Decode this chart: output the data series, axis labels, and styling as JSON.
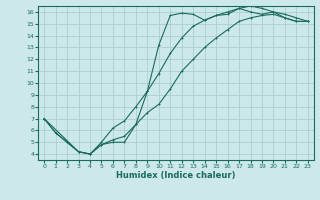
{
  "xlabel": "Humidex (Indice chaleur)",
  "bg_color": "#cce8e8",
  "line_color": "#1a6b5a",
  "grid_color": "#aad0d0",
  "xlim": [
    -0.5,
    23.5
  ],
  "ylim": [
    3.5,
    16.5
  ],
  "yticks": [
    4,
    5,
    6,
    7,
    8,
    9,
    10,
    11,
    12,
    13,
    14,
    15,
    16
  ],
  "xticks": [
    0,
    1,
    2,
    3,
    4,
    5,
    6,
    7,
    8,
    9,
    10,
    11,
    12,
    13,
    14,
    15,
    16,
    17,
    18,
    19,
    20,
    21,
    22,
    23
  ],
  "line1_x": [
    0,
    1,
    2,
    3,
    4,
    5,
    6,
    7,
    8,
    9,
    10,
    11,
    12,
    13,
    14,
    15,
    16,
    17,
    18,
    19,
    20,
    21,
    22,
    23
  ],
  "line1_y": [
    7.0,
    5.8,
    5.0,
    4.2,
    4.0,
    4.8,
    5.0,
    5.0,
    6.5,
    9.3,
    13.2,
    15.7,
    15.9,
    15.8,
    15.3,
    15.7,
    15.8,
    16.3,
    16.0,
    15.8,
    16.0,
    15.5,
    15.2,
    15.2
  ],
  "line2_x": [
    0,
    1,
    3,
    4,
    5,
    6,
    7,
    8,
    9,
    10,
    11,
    12,
    13,
    14,
    15,
    16,
    17,
    18,
    19,
    20,
    21,
    22,
    23
  ],
  "line2_y": [
    7.0,
    5.8,
    4.2,
    4.0,
    4.8,
    5.2,
    5.5,
    6.5,
    7.5,
    8.2,
    9.5,
    11.0,
    12.0,
    13.0,
    13.8,
    14.5,
    15.2,
    15.5,
    15.7,
    15.8,
    15.5,
    15.2,
    15.2
  ],
  "line3_x": [
    0,
    3,
    4,
    5,
    6,
    7,
    8,
    9,
    10,
    11,
    12,
    13,
    14,
    15,
    16,
    17,
    18,
    19,
    20,
    21,
    22,
    23
  ],
  "line3_y": [
    7.0,
    4.2,
    4.0,
    5.0,
    6.2,
    6.8,
    8.0,
    9.3,
    10.8,
    12.5,
    13.8,
    14.8,
    15.3,
    15.7,
    16.0,
    16.3,
    16.5,
    16.3,
    16.0,
    15.8,
    15.5,
    15.2
  ]
}
